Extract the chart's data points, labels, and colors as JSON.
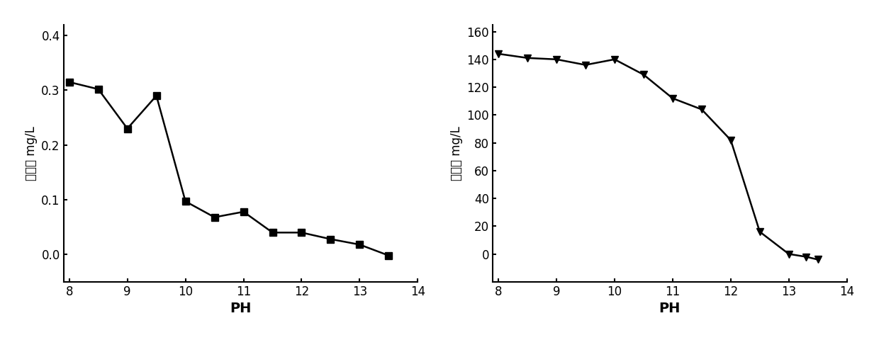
{
  "left_chart": {
    "x": [
      8.0,
      8.5,
      9.0,
      9.5,
      10.0,
      10.5,
      11.0,
      11.5,
      12.0,
      12.5,
      13.0,
      13.5
    ],
    "y": [
      0.315,
      0.302,
      0.23,
      0.29,
      0.097,
      0.068,
      0.078,
      0.04,
      0.04,
      0.028,
      0.018,
      -0.002
    ],
    "ylabel": "铜离子 mg/L",
    "xlabel": "PH",
    "ylim": [
      -0.05,
      0.42
    ],
    "xlim": [
      7.9,
      14
    ],
    "yticks": [
      0.0,
      0.1,
      0.2,
      0.3,
      0.4
    ],
    "xticks": [
      8,
      9,
      10,
      11,
      12,
      13,
      14
    ]
  },
  "right_chart": {
    "x": [
      8.0,
      8.5,
      9.0,
      9.5,
      10.0,
      10.5,
      11.0,
      11.5,
      12.0,
      12.5,
      13.0,
      13.3,
      13.5
    ],
    "y": [
      144,
      141,
      140,
      136,
      140,
      129,
      112,
      104,
      82,
      16,
      0,
      -2,
      -4
    ],
    "ylabel": "镖离子 mg/L",
    "xlabel": "PH",
    "ylim": [
      -20,
      165
    ],
    "xlim": [
      7.9,
      14
    ],
    "yticks": [
      0,
      20,
      40,
      60,
      80,
      100,
      120,
      140,
      160
    ],
    "xticks": [
      8,
      9,
      10,
      11,
      12,
      13,
      14
    ]
  },
  "line_color": "#000000",
  "marker_color": "#000000",
  "bg_color": "#ffffff",
  "linewidth": 1.8,
  "markersize": 7
}
